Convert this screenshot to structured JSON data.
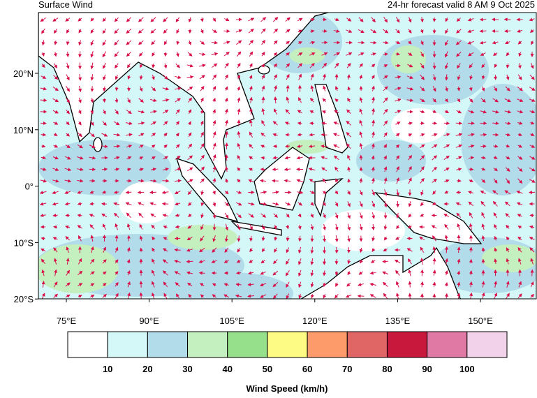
{
  "header": {
    "title": "Surface Wind",
    "subtitle": "24-hr forecast valid 8 AM 9 Oct 2025"
  },
  "map": {
    "lat_labels": [
      "20°N",
      "10°N",
      "0°",
      "10°S",
      "20°S"
    ],
    "lon_labels": [
      "75°E",
      "90°E",
      "105°E",
      "120°E",
      "135°E",
      "150°E"
    ]
  },
  "colorbar": {
    "colors": [
      "#ffffff",
      "#d4f7f7",
      "#b2dcea",
      "#c4efbe",
      "#96e08c",
      "#fdfb84",
      "#fd9c6a",
      "#e06666",
      "#c8183c",
      "#e07aa4",
      "#f2d2ea"
    ],
    "labels": [
      10,
      20,
      30,
      40,
      50,
      60,
      70,
      80,
      90,
      100
    ],
    "title": "Wind Speed (km/h)"
  }
}
